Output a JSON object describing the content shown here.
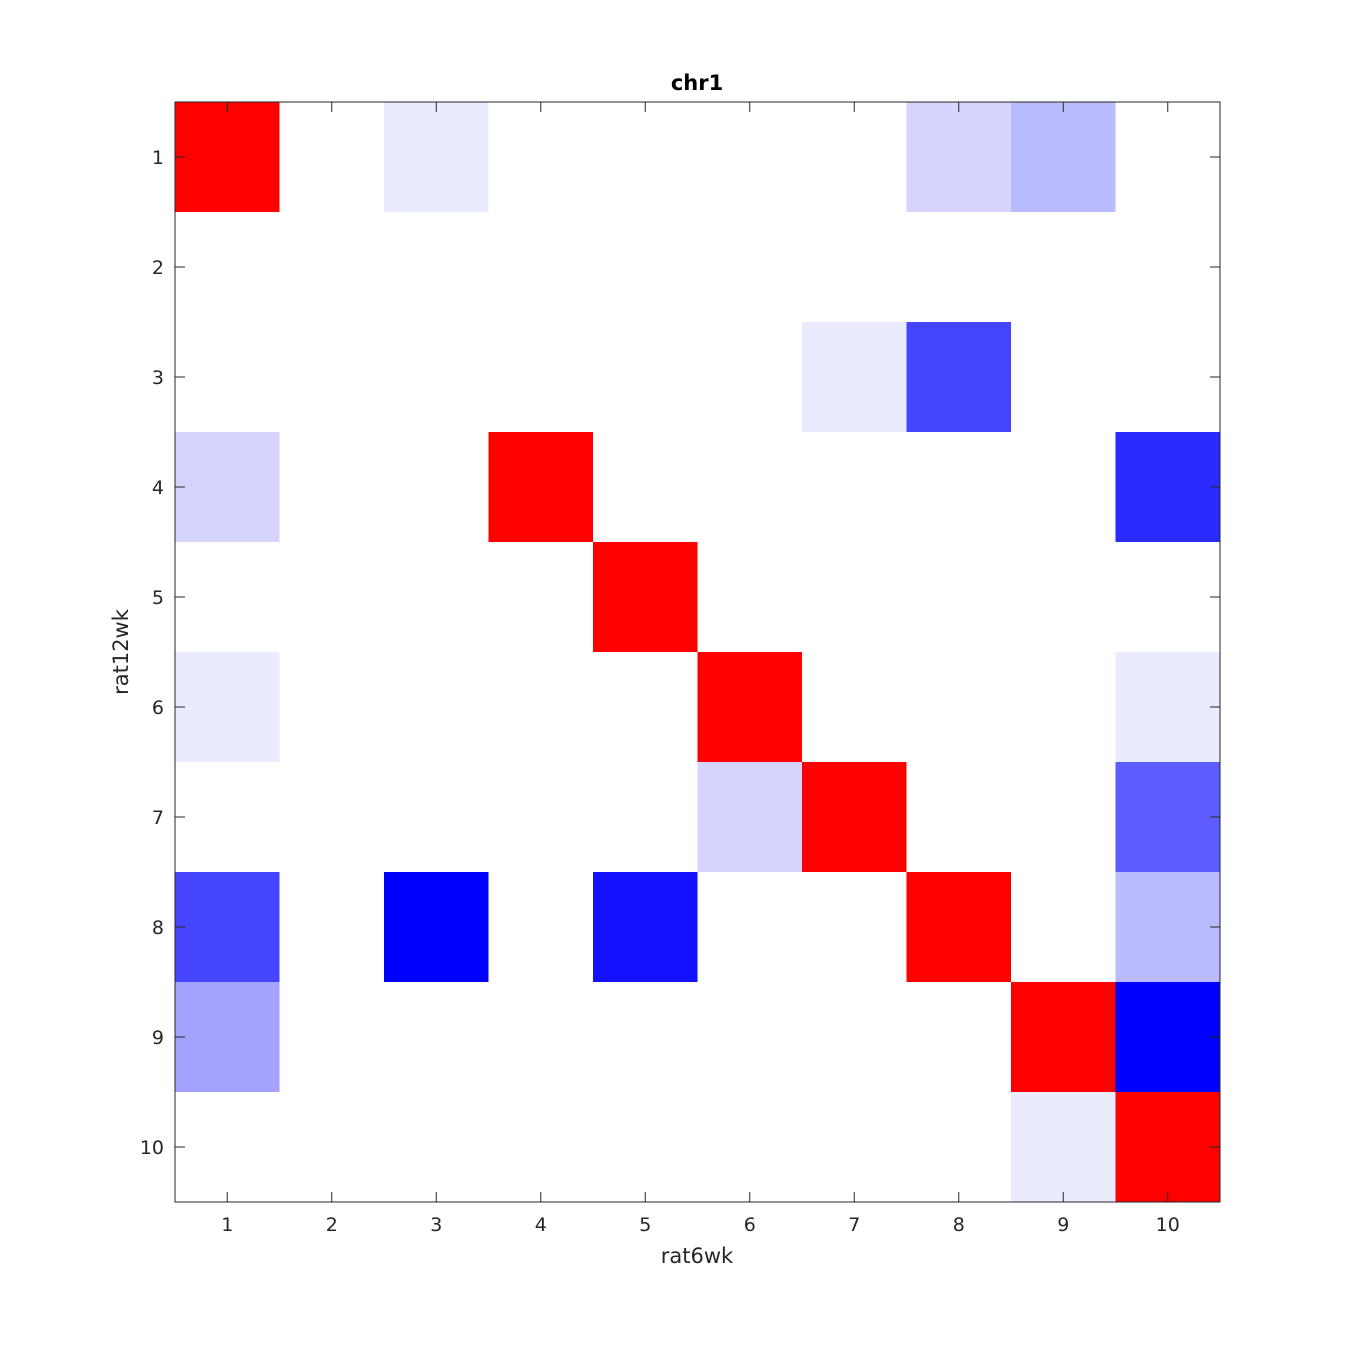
{
  "chart_data": {
    "type": "heatmap",
    "title": "chr1",
    "xlabel": "rat6wk",
    "ylabel": "rat12wk",
    "x_categories": [
      "1",
      "2",
      "3",
      "4",
      "5",
      "6",
      "7",
      "8",
      "9",
      "10"
    ],
    "y_categories": [
      "1",
      "2",
      "3",
      "4",
      "5",
      "6",
      "7",
      "8",
      "9",
      "10"
    ],
    "grid": false,
    "colormap": "blue-white-red",
    "colors": {
      "positive": "#ff0000",
      "negative": "#0000ff",
      "neutral": "#ffffff",
      "axis": "#262626"
    },
    "matrix": [
      [
        1.0,
        0,
        -0.08,
        0,
        0,
        0,
        0,
        -0.17,
        -0.27,
        0
      ],
      [
        0,
        0,
        0,
        0,
        0,
        0,
        0,
        0,
        0,
        0
      ],
      [
        0,
        0,
        0,
        0,
        0,
        0,
        -0.08,
        -0.73,
        0,
        0
      ],
      [
        -0.17,
        0,
        0,
        1.0,
        0,
        0,
        0,
        0,
        0,
        -0.83
      ],
      [
        0,
        0,
        0,
        0,
        1.0,
        0,
        0,
        0,
        0,
        0
      ],
      [
        -0.08,
        0,
        0,
        0,
        0,
        1.0,
        0,
        0,
        0,
        -0.08
      ],
      [
        0,
        0,
        0,
        0,
        0,
        -0.17,
        1.0,
        0,
        0,
        -0.64
      ],
      [
        -0.73,
        0,
        -1.0,
        0,
        -0.93,
        0,
        0,
        1.0,
        0,
        -0.27
      ],
      [
        -0.36,
        0,
        0,
        0,
        0,
        0,
        0,
        0,
        1.0,
        -1.0
      ],
      [
        0,
        0,
        0,
        0,
        0,
        0,
        0,
        0,
        -0.08,
        1.0
      ]
    ]
  }
}
